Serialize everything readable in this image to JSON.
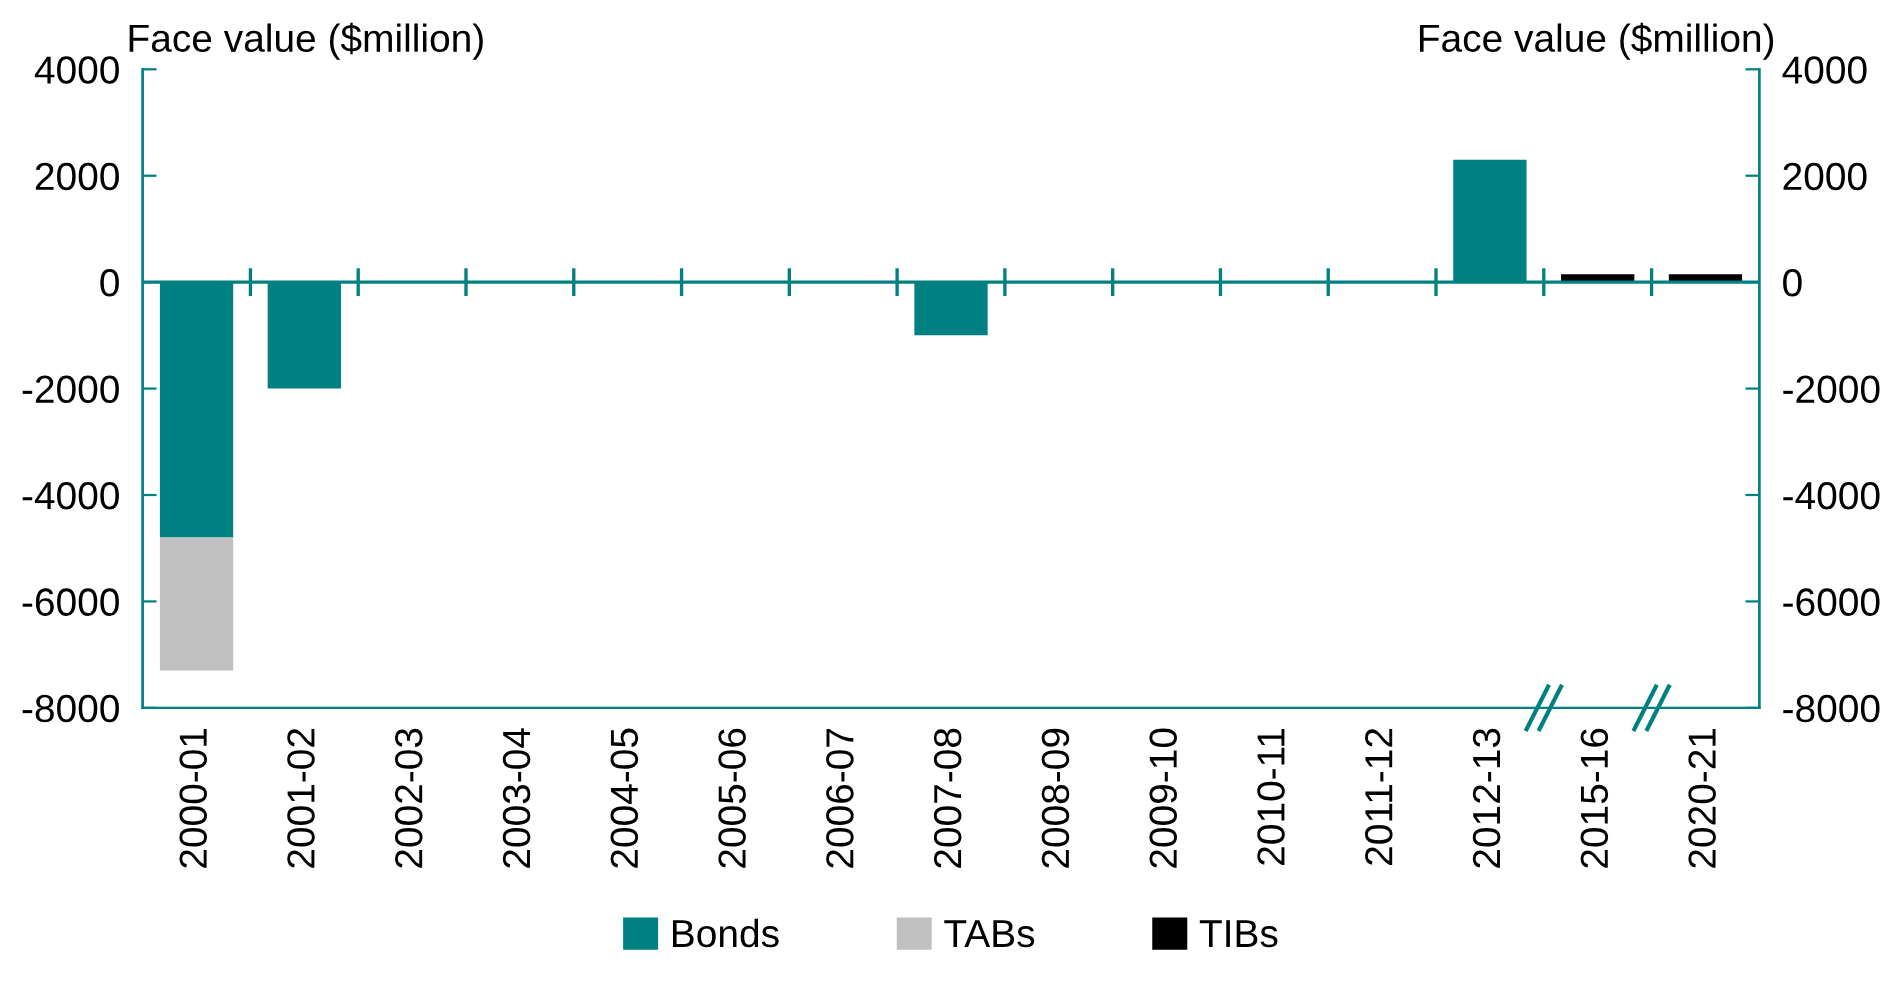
{
  "chart_data": {
    "type": "bar",
    "stacked": true,
    "ylabel": "Face value ($million)",
    "y2label": "Face value ($million)",
    "categories": [
      "2000-01",
      "2001-02",
      "2002-03",
      "2003-04",
      "2004-05",
      "2005-06",
      "2006-07",
      "2007-08",
      "2008-09",
      "2009-10",
      "2010-11",
      "2011-12",
      "2012-13",
      "2015-16",
      "2020-21"
    ],
    "series": [
      {
        "name": "Bonds",
        "color": "#008080",
        "values": [
          -4800,
          -2000,
          null,
          null,
          null,
          null,
          null,
          -1000,
          null,
          null,
          null,
          null,
          2300,
          null,
          null
        ]
      },
      {
        "name": "TABs",
        "color": "#c0c0c0",
        "values": [
          -2500,
          null,
          null,
          null,
          null,
          null,
          null,
          null,
          null,
          null,
          null,
          null,
          null,
          null,
          null
        ]
      },
      {
        "name": "TIBs",
        "color": "#000000",
        "values": [
          null,
          null,
          null,
          null,
          null,
          null,
          null,
          null,
          null,
          null,
          null,
          null,
          null,
          150,
          150
        ]
      }
    ],
    "ylim": [
      -8000,
      4000
    ],
    "yticks": [
      -8000,
      -6000,
      -4000,
      -2000,
      0,
      2000,
      4000
    ],
    "y2lim": [
      -8000,
      4000
    ],
    "y2ticks": [
      -8000,
      -6000,
      -4000,
      -2000,
      0,
      2000,
      4000
    ],
    "ref_lines": [
      {
        "axis": "y",
        "value": 0,
        "color": "#008080",
        "line_style": "solid"
      }
    ],
    "legend": "bottom",
    "grid": false
  }
}
